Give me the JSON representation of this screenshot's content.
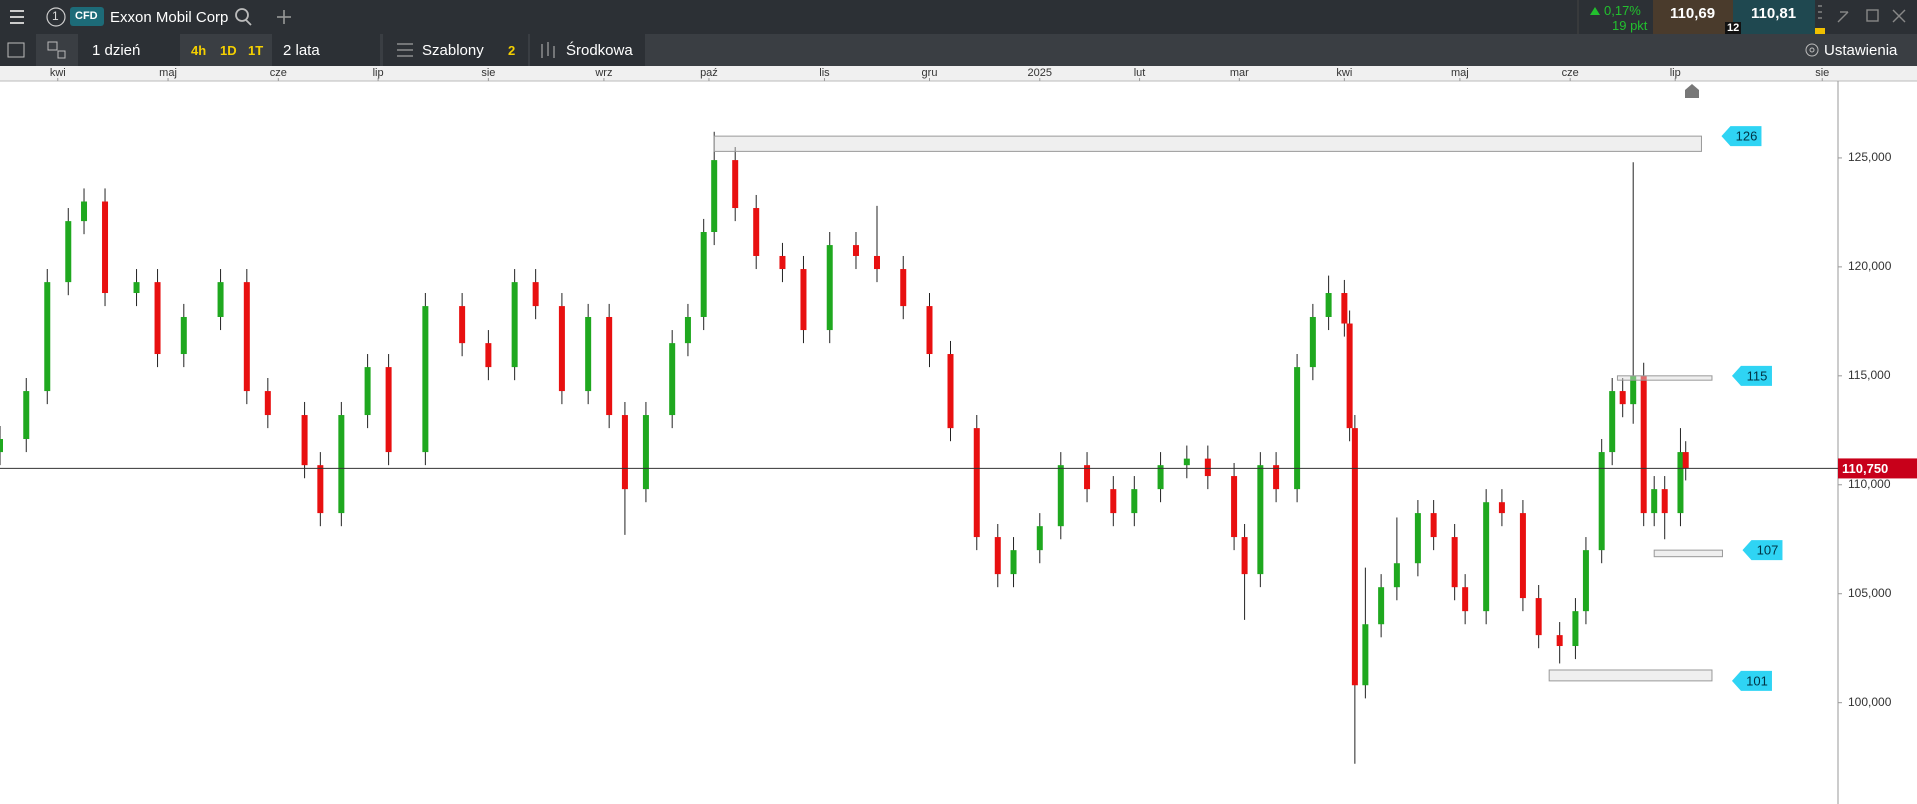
{
  "header": {
    "tab_number": "1",
    "badge": "CFD",
    "instrument": "Exxon Mobil Corp",
    "change": "0,17%",
    "change_points": "19 pkt",
    "bid": "110,69",
    "ask": "110,81",
    "spread": "12"
  },
  "toolbar": {
    "interval": "1 dzień",
    "quick": [
      "4h",
      "1D",
      "1T"
    ],
    "range": "2 lata",
    "templates": "Szablony",
    "templates_count": "2",
    "price_type": "Środkowa",
    "settings": "Ustawienia"
  },
  "chart_data": {
    "type": "candlestick",
    "x": [
      0,
      5,
      9,
      13,
      16,
      20,
      26,
      30,
      35,
      42,
      47,
      51,
      58,
      61,
      65,
      70,
      74,
      81,
      88,
      93,
      98,
      102,
      107,
      112,
      116,
      119,
      123,
      128,
      131,
      134,
      136,
      140,
      144,
      149,
      153,
      158,
      163,
      167,
      172,
      177,
      181,
      186,
      190,
      193,
      198,
      202,
      207,
      212,
      216,
      221,
      226,
      230,
      235,
      237,
      240,
      243,
      247,
      250,
      253,
      256,
      257,
      258,
      260,
      263,
      266,
      270,
      273,
      277,
      279,
      283,
      286,
      290,
      293,
      297,
      300,
      302,
      305,
      307,
      309,
      311,
      313,
      315,
      317,
      320,
      321
    ],
    "open": [
      111.5,
      112.1,
      114.3,
      119.3,
      122.1,
      123,
      118.8,
      119.3,
      116,
      117.7,
      119.3,
      114.3,
      113.2,
      110.9,
      108.7,
      113.2,
      115.4,
      111.5,
      118.2,
      116.5,
      115.4,
      119.3,
      118.2,
      114.3,
      117.7,
      113.2,
      109.8,
      113.2,
      116.5,
      117.7,
      121.6,
      124.9,
      122.7,
      120.5,
      119.9,
      117.1,
      121,
      120.5,
      119.9,
      118.2,
      116,
      112.6,
      107.6,
      105.9,
      107,
      108.1,
      110.9,
      109.8,
      108.7,
      109.8,
      110.9,
      111.2,
      110.4,
      107.6,
      105.9,
      110.9,
      109.8,
      115.4,
      117.7,
      118.8,
      117.4,
      112.6,
      100.8,
      103.6,
      105.3,
      106.4,
      108.7,
      107.6,
      105.3,
      104.2,
      109.2,
      108.7,
      104.8,
      103.1,
      102.6,
      104.2,
      107,
      111.5,
      114.3,
      113.7,
      115,
      108.7,
      109.8,
      108.7,
      111.5
    ],
    "high": [
      112.7,
      114.9,
      119.9,
      122.7,
      123.6,
      123.6,
      119.9,
      119.9,
      118.3,
      119.9,
      119.9,
      114.9,
      113.8,
      111.5,
      113.8,
      116,
      116,
      118.8,
      118.8,
      117.1,
      119.9,
      119.9,
      118.8,
      118.3,
      118.3,
      113.8,
      113.8,
      117.1,
      118.3,
      122.2,
      126.2,
      125.5,
      123.3,
      121.1,
      120.5,
      121.6,
      121.6,
      122.8,
      120.5,
      118.8,
      116.6,
      113.2,
      108.2,
      107.6,
      108.7,
      111.5,
      111.5,
      110.4,
      110.4,
      111.5,
      111.8,
      111.8,
      111,
      108.2,
      111.5,
      111.5,
      116,
      118.3,
      119.6,
      119.4,
      118,
      113.2,
      106.2,
      105.9,
      108.5,
      109.3,
      109.3,
      108.2,
      105.9,
      109.8,
      109.8,
      109.3,
      105.4,
      103.7,
      104.8,
      107.6,
      112.1,
      114.9,
      114.9,
      124.8,
      115.6,
      110.4,
      110.4,
      112.6,
      112
    ],
    "low": [
      110.9,
      111.5,
      113.7,
      118.7,
      121.5,
      118.2,
      118.2,
      115.4,
      115.4,
      117.1,
      113.7,
      112.6,
      110.3,
      108.1,
      108.1,
      112.6,
      110.9,
      110.9,
      115.9,
      114.8,
      114.8,
      117.6,
      113.7,
      113.7,
      112.6,
      107.7,
      109.2,
      112.6,
      115.9,
      117.1,
      121,
      122.1,
      119.9,
      119.3,
      116.5,
      116.5,
      119.9,
      119.3,
      117.6,
      115.4,
      112,
      107,
      105.3,
      105.3,
      106.4,
      107.5,
      109.2,
      108.1,
      108.1,
      109.2,
      110.3,
      109.8,
      107,
      103.8,
      105.3,
      109.2,
      109.2,
      114.8,
      117.1,
      116.8,
      112,
      97.2,
      100.2,
      103,
      104.7,
      105.8,
      107,
      104.7,
      103.6,
      103.6,
      108.1,
      104.2,
      102.5,
      101.8,
      102,
      103.6,
      106.4,
      110.9,
      113.1,
      112.8,
      108.1,
      108.1,
      107.5,
      108.1,
      110.2
    ],
    "close": [
      112.1,
      114.3,
      119.3,
      122.1,
      123,
      118.8,
      119.3,
      116,
      117.7,
      119.3,
      114.3,
      113.2,
      110.9,
      108.7,
      113.2,
      115.4,
      111.5,
      118.2,
      116.5,
      115.4,
      119.3,
      118.2,
      114.3,
      117.7,
      113.2,
      109.8,
      113.2,
      116.5,
      117.7,
      121.6,
      124.9,
      122.7,
      120.5,
      119.9,
      117.1,
      121,
      120.5,
      119.9,
      118.2,
      116,
      112.6,
      107.6,
      105.9,
      107,
      108.1,
      110.9,
      109.8,
      108.7,
      109.8,
      110.9,
      111.2,
      110.4,
      107.6,
      105.9,
      110.9,
      109.8,
      115.4,
      117.7,
      118.8,
      117.4,
      112.6,
      100.8,
      103.6,
      105.3,
      106.4,
      108.7,
      107.6,
      105.3,
      104.2,
      109.2,
      108.7,
      104.8,
      103.1,
      102.6,
      104.2,
      107,
      111.5,
      114.3,
      113.7,
      115,
      108.7,
      109.8,
      108.7,
      111.5,
      110.75
    ],
    "xlim": [
      0,
      350
    ],
    "xticks": [
      {
        "value": 11,
        "label": "kwi"
      },
      {
        "value": 32,
        "label": "maj"
      },
      {
        "value": 53,
        "label": "cze"
      },
      {
        "value": 72,
        "label": "lip"
      },
      {
        "value": 93,
        "label": "sie"
      },
      {
        "value": 115,
        "label": "wrz"
      },
      {
        "value": 135,
        "label": "paź"
      },
      {
        "value": 157,
        "label": "lis"
      },
      {
        "value": 177,
        "label": "gru"
      },
      {
        "value": 198,
        "label": "2025"
      },
      {
        "value": 217,
        "label": "lut"
      },
      {
        "value": 236,
        "label": "mar"
      },
      {
        "value": 256,
        "label": "kwi"
      },
      {
        "value": 278,
        "label": "maj"
      },
      {
        "value": 299,
        "label": "cze"
      },
      {
        "value": 319,
        "label": "lip"
      },
      {
        "value": 347,
        "label": "sie"
      }
    ],
    "ylim": [
      95.35,
      128.53
    ],
    "yticks": [
      {
        "value": 100,
        "label": "100,000"
      },
      {
        "value": 105,
        "label": "105,000"
      },
      {
        "value": 110,
        "label": "110,000"
      },
      {
        "value": 115,
        "label": "115,000"
      },
      {
        "value": 120,
        "label": "120,000"
      },
      {
        "value": 125,
        "label": "125,000"
      }
    ],
    "up_color": "#1fa81f",
    "down_color": "#e81010",
    "current_price": {
      "value": 110.75,
      "label": "110,750"
    },
    "levels": [
      {
        "value": 126,
        "range": [
          125.3,
          126.0
        ],
        "xrange": [
          136,
          324
        ]
      },
      {
        "value": 115,
        "range": [
          114.8,
          115.0
        ],
        "xrange": [
          308,
          326
        ]
      },
      {
        "value": 107,
        "range": [
          106.7,
          107.0
        ],
        "xrange": [
          315,
          328
        ]
      },
      {
        "value": 101,
        "range": [
          101.0,
          101.5
        ],
        "xrange": [
          295,
          326
        ]
      }
    ]
  }
}
